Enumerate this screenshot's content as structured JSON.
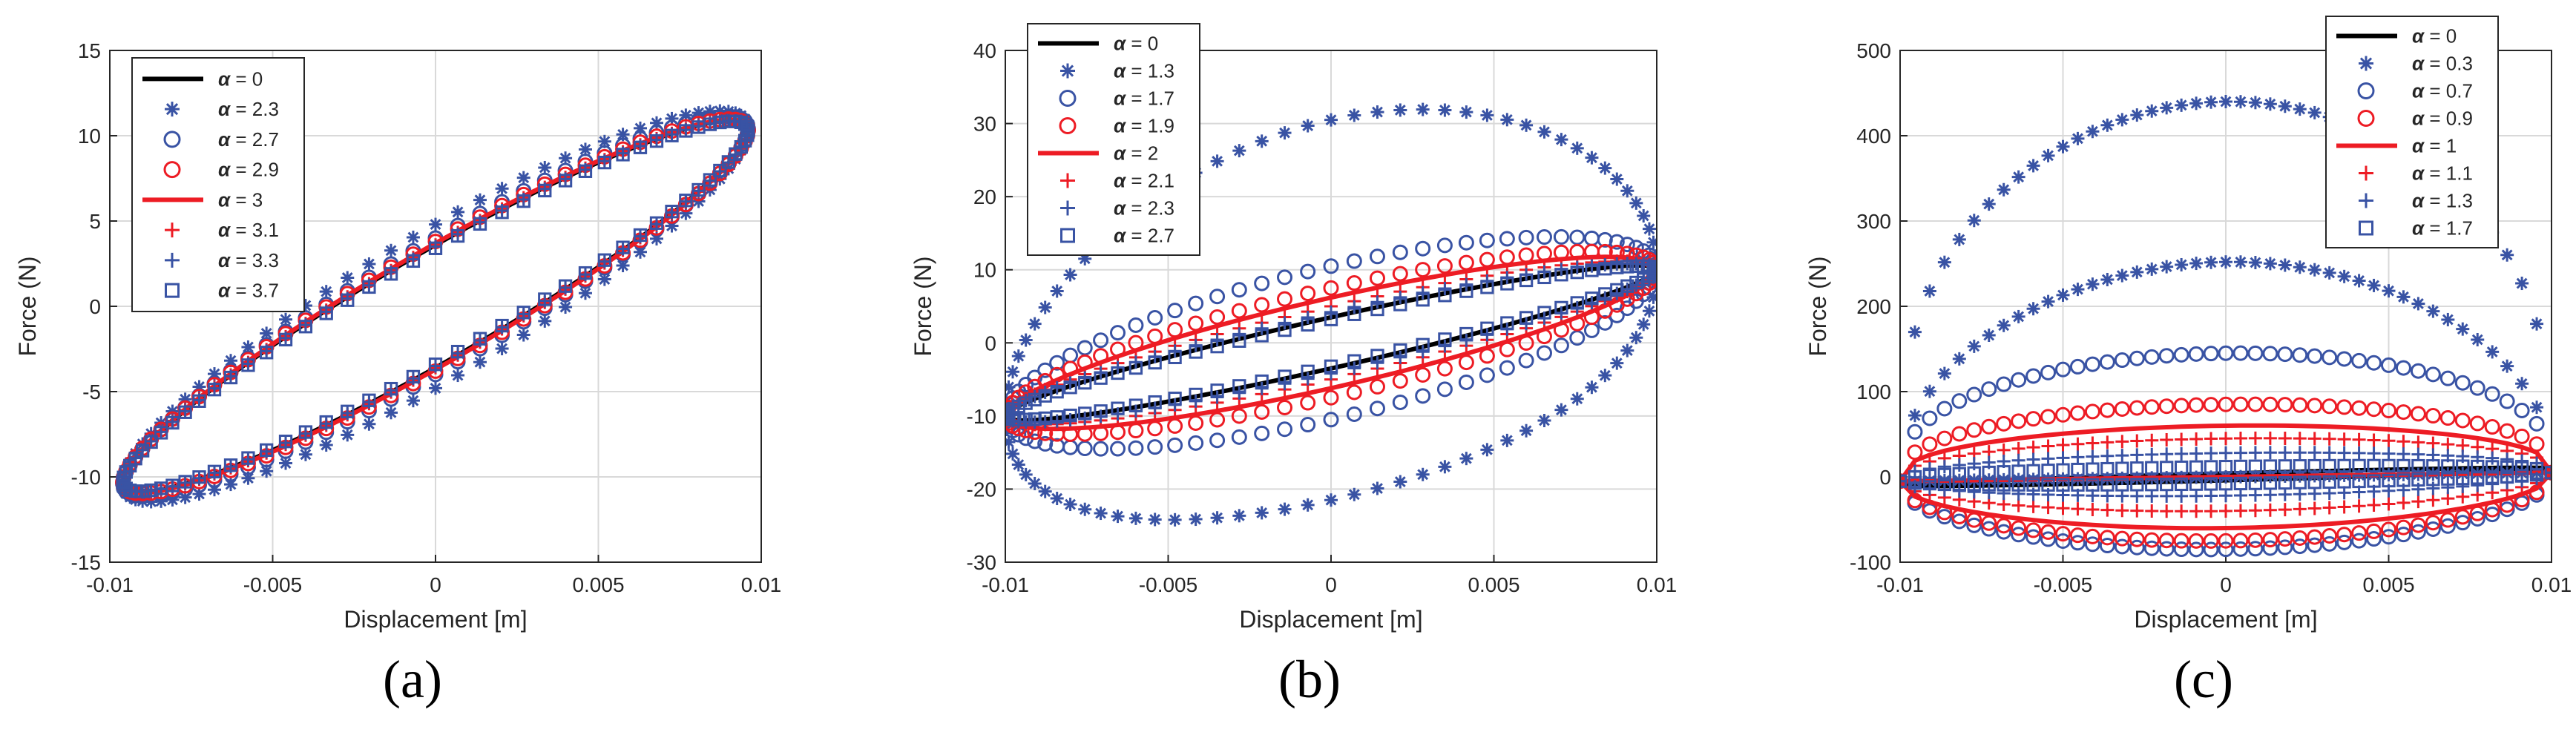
{
  "colors": {
    "black": "#000000",
    "blue": "#3953a4",
    "red": "#ed1c24",
    "grid": "#d9d9d9",
    "axis": "#262626"
  },
  "chart_data": [
    {
      "type": "scatter",
      "panel_label": "(a)",
      "xlabel": "Displacement [m]",
      "ylabel": "Force (N)",
      "xlim": [
        -0.01,
        0.01
      ],
      "ylim": [
        -15,
        15
      ],
      "xticks": [
        -0.01,
        -0.005,
        0,
        0.005,
        0.01
      ],
      "xtick_labels": [
        "-0.01",
        "-0.005",
        "0",
        "0.005",
        "0.01"
      ],
      "yticks": [
        -15,
        -10,
        -5,
        0,
        5,
        10,
        15
      ],
      "ytick_labels": [
        "-15",
        "-10",
        "-5",
        "0",
        "5",
        "10",
        "15"
      ],
      "grid": true,
      "legend_position": "top-left",
      "series": [
        {
          "name": "= 0",
          "alpha": 0,
          "marker": "line",
          "color": "black",
          "peak_x": 0.0096,
          "peak_y": 10.3,
          "width": 3.6,
          "tilt": 0
        },
        {
          "name": "= 2.3",
          "alpha": 2.3,
          "marker": "star",
          "color": "blue",
          "peak_x": 0.0096,
          "peak_y": 10.4,
          "width": 4.8,
          "tilt": 0
        },
        {
          "name": "= 2.7",
          "alpha": 2.7,
          "marker": "circle",
          "color": "blue",
          "peak_x": 0.0096,
          "peak_y": 10.4,
          "width": 4.0,
          "tilt": 0
        },
        {
          "name": "= 2.9",
          "alpha": 2.9,
          "marker": "circle",
          "color": "red",
          "peak_x": 0.0096,
          "peak_y": 10.3,
          "width": 3.8,
          "tilt": 0
        },
        {
          "name": "= 3",
          "alpha": 3,
          "marker": "line",
          "color": "red",
          "peak_x": 0.0096,
          "peak_y": 10.3,
          "width": 3.7,
          "tilt": 0
        },
        {
          "name": "= 3.1",
          "alpha": 3.1,
          "marker": "plus",
          "color": "red",
          "peak_x": 0.0096,
          "peak_y": 10.3,
          "width": 3.6,
          "tilt": 0
        },
        {
          "name": "= 3.3",
          "alpha": 3.3,
          "marker": "plus",
          "color": "blue",
          "peak_x": 0.0096,
          "peak_y": 10.3,
          "width": 3.5,
          "tilt": 0
        },
        {
          "name": "= 3.7",
          "alpha": 3.7,
          "marker": "square",
          "color": "blue",
          "peak_x": 0.0096,
          "peak_y": 10.3,
          "width": 3.4,
          "tilt": 0
        }
      ]
    },
    {
      "type": "scatter",
      "panel_label": "(b)",
      "xlabel": "Displacement [m]",
      "ylabel": "Force (N)",
      "xlim": [
        -0.01,
        0.01
      ],
      "ylim": [
        -30,
        40
      ],
      "xticks": [
        -0.01,
        -0.005,
        0,
        0.005,
        0.01
      ],
      "xtick_labels": [
        "-0.01",
        "-0.005",
        "0",
        "0.005",
        "0.01"
      ],
      "yticks": [
        -30,
        -20,
        -10,
        0,
        10,
        20,
        30,
        40
      ],
      "ytick_labels": [
        "-30",
        "-20",
        "-10",
        "0",
        "10",
        "20",
        "30",
        "40"
      ],
      "grid": true,
      "legend_position": "top-left",
      "series": [
        {
          "name": "= 0",
          "alpha": 0,
          "marker": "line",
          "color": "black",
          "peak_x": 0.01,
          "peak_y": 10,
          "width": 3.5,
          "tilt": 0
        },
        {
          "name": "= 1.3",
          "alpha": 1.3,
          "marker": "star",
          "color": "blue",
          "peak_x": 0.01,
          "peak_y": 10,
          "width": 26.5,
          "tilt": 5
        },
        {
          "name": "= 1.7",
          "alpha": 1.7,
          "marker": "circle",
          "color": "blue",
          "peak_x": 0.01,
          "peak_y": 10,
          "width": 10.5,
          "tilt": 0
        },
        {
          "name": "= 1.9",
          "alpha": 1.9,
          "marker": "circle",
          "color": "red",
          "peak_x": 0.01,
          "peak_y": 10,
          "width": 7.5,
          "tilt": 0
        },
        {
          "name": "= 2",
          "alpha": 2,
          "marker": "line",
          "color": "red",
          "peak_x": 0.01,
          "peak_y": 10,
          "width": 6.2,
          "tilt": 0
        },
        {
          "name": "= 2.1",
          "alpha": 2.1,
          "marker": "plus",
          "color": "red",
          "peak_x": 0.01,
          "peak_y": 10,
          "width": 5.0,
          "tilt": 0
        },
        {
          "name": "= 2.3",
          "alpha": 2.3,
          "marker": "plus",
          "color": "blue",
          "peak_x": 0.01,
          "peak_y": 10,
          "width": 4.2,
          "tilt": 0
        },
        {
          "name": "= 2.7",
          "alpha": 2.7,
          "marker": "square",
          "color": "blue",
          "peak_x": 0.01,
          "peak_y": 10,
          "width": 3.2,
          "tilt": 0
        }
      ]
    },
    {
      "type": "scatter",
      "panel_label": "(c)",
      "xlabel": "Displacement [m]",
      "ylabel": "Force (N)",
      "xlim": [
        -0.01,
        0.01
      ],
      "ylim": [
        -100,
        500
      ],
      "xticks": [
        -0.01,
        -0.005,
        0,
        0.005,
        0.01
      ],
      "xtick_labels": [
        "-0.01",
        "-0.005",
        "0",
        "0.005",
        "0.01"
      ],
      "yticks": [
        -100,
        0,
        100,
        200,
        300,
        400,
        500
      ],
      "ytick_labels": [
        "-100",
        "0",
        "100",
        "200",
        "300",
        "400",
        "500"
      ],
      "grid": true,
      "legend_position": "top-right",
      "series": [
        {
          "name": "= 0",
          "alpha": 0,
          "marker": "line",
          "color": "black",
          "peak_x": 0.01,
          "peak_y": 10,
          "width": 4,
          "tilt": 0
        },
        {
          "name": "= 0.3",
          "alpha": 0.3,
          "marker": "star",
          "color": "blue",
          "peak_x": 0.01,
          "peak_y": 10,
          "width": 0,
          "tilt": 0,
          "upper_arcs": [
            440,
            252
          ],
          "lower": 0
        },
        {
          "name": "= 0.7",
          "alpha": 0.7,
          "marker": "circle",
          "color": "blue",
          "peak_x": 0.01,
          "peak_y": 10,
          "width": 0,
          "tilt": 0,
          "upper_arcs": [
            145
          ],
          "lower": -85
        },
        {
          "name": "= 0.9",
          "alpha": 0.9,
          "marker": "circle",
          "color": "red",
          "peak_x": 0.01,
          "peak_y": 10,
          "width": 0,
          "tilt": 0,
          "upper_arcs": [
            85
          ],
          "lower": -75
        },
        {
          "name": "= 1",
          "alpha": 1,
          "marker": "line",
          "color": "red",
          "peak_x": 0.01,
          "peak_y": 10,
          "width": 0,
          "tilt": 0,
          "upper_arcs": [
            60
          ],
          "lower": -60
        },
        {
          "name": "= 1.1",
          "alpha": 1.1,
          "marker": "plus",
          "color": "red",
          "peak_x": 0.01,
          "peak_y": 10,
          "width": 0,
          "tilt": 0,
          "upper_arcs": [
            45
          ],
          "lower": -40
        },
        {
          "name": "= 1.3",
          "alpha": 1.3,
          "marker": "plus",
          "color": "blue",
          "peak_x": 0.01,
          "peak_y": 10,
          "width": 0,
          "tilt": 0,
          "upper_arcs": [
            28
          ],
          "lower": -22
        },
        {
          "name": "= 1.7",
          "alpha": 1.7,
          "marker": "square",
          "color": "blue",
          "peak_x": 0.01,
          "peak_y": 10,
          "width": 0,
          "tilt": 0,
          "upper_arcs": [
            12
          ],
          "lower": -8
        }
      ]
    }
  ]
}
